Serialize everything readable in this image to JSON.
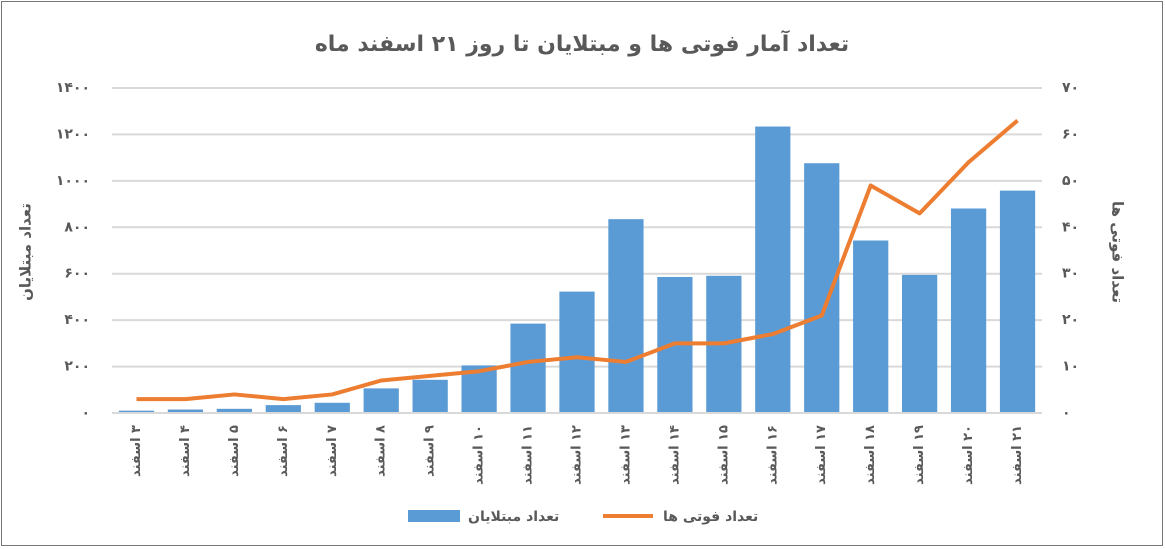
{
  "chart_data": {
    "type": "bar-line",
    "title": "تعداد آمار فوتی ها و مبتلایان تا روز ۲۱ اسفند ماه",
    "y_label": "تعداد مبتلایان",
    "y2_label": "تعداد فوتی ها",
    "categories": [
      "۳ اسفند",
      "۴ اسفند",
      "۵ اسفند",
      "۶ اسفند",
      "۷ اسفند",
      "۸ اسفند",
      "۹ اسفند",
      "۱۰ اسفند",
      "۱۱ اسفند",
      "۱۲ اسفند",
      "۱۳ اسفند",
      "۱۴ اسفند",
      "۱۵ اسفند",
      "۱۶ اسفند",
      "۱۷ اسفند",
      "۱۸ اسفند",
      "۱۹ اسفند",
      "۲۰ اسفند",
      "۲۱ اسفند"
    ],
    "series": [
      {
        "name": "تعداد مبتلایان",
        "type": "bar",
        "color": "#5b9bd5",
        "values": [
          10,
          15,
          18,
          34,
          44,
          106,
          143,
          205,
          385,
          523,
          835,
          586,
          591,
          1234,
          1076,
          743,
          595,
          881,
          958
        ]
      },
      {
        "name": "تعداد فوتی ها",
        "type": "line",
        "axis": "y2",
        "color": "#ed7d31",
        "values": [
          3,
          3,
          4,
          3,
          4,
          7,
          8,
          9,
          11,
          12,
          11,
          15,
          15,
          17,
          21,
          49,
          43,
          54,
          63
        ]
      }
    ],
    "ylim": [
      0,
      1400
    ],
    "yticks": [
      {
        "value": 0,
        "label": "۰"
      },
      {
        "value": 200,
        "label": "۲۰۰"
      },
      {
        "value": 400,
        "label": "۴۰۰"
      },
      {
        "value": 600,
        "label": "۶۰۰"
      },
      {
        "value": 800,
        "label": "۸۰۰"
      },
      {
        "value": 1000,
        "label": "۱۰۰۰"
      },
      {
        "value": 1200,
        "label": "۱۲۰۰"
      },
      {
        "value": 1400,
        "label": "۱۴۰۰"
      }
    ],
    "y2lim": [
      0,
      70
    ],
    "y2ticks": [
      {
        "value": 0,
        "label": "۰"
      },
      {
        "value": 10,
        "label": "۱۰"
      },
      {
        "value": 20,
        "label": "۲۰"
      },
      {
        "value": 30,
        "label": "۳۰"
      },
      {
        "value": 40,
        "label": "۴۰"
      },
      {
        "value": 50,
        "label": "۵۰"
      },
      {
        "value": 60,
        "label": "۶۰"
      },
      {
        "value": 70,
        "label": "۷۰"
      }
    ],
    "grid": true
  }
}
